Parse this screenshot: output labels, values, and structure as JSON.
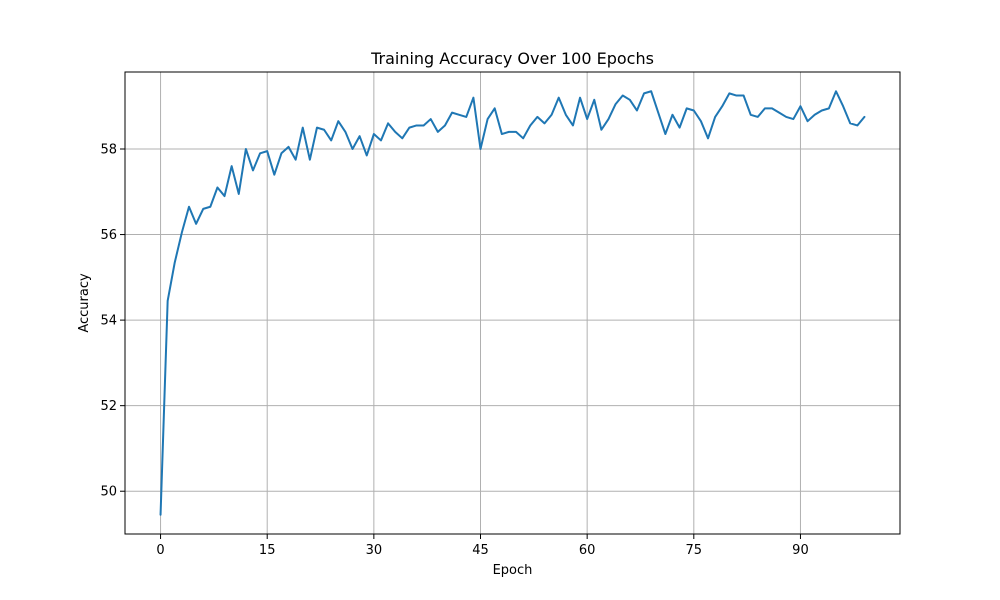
{
  "chart_data": {
    "type": "line",
    "title": "Training Accuracy Over 100 Epochs",
    "xlabel": "Epoch",
    "ylabel": "Accuracy",
    "xlim": [
      -5,
      104
    ],
    "ylim": [
      49.0,
      59.8
    ],
    "xticks": [
      0,
      15,
      30,
      45,
      60,
      75,
      90
    ],
    "yticks": [
      50,
      52,
      54,
      56,
      58
    ],
    "grid": true,
    "line_color": "#1f77b4",
    "series": [
      {
        "x": [
          0,
          1,
          2,
          3,
          4,
          5,
          6,
          7,
          8,
          9,
          10,
          11,
          12,
          13,
          14,
          15,
          16,
          17,
          18,
          19,
          20,
          21,
          22,
          23,
          24,
          25,
          26,
          27,
          28,
          29,
          30,
          31,
          32,
          33,
          34,
          35,
          36,
          37,
          38,
          39,
          40,
          41,
          42,
          43,
          44,
          45,
          46,
          47,
          48,
          49,
          50,
          51,
          52,
          53,
          54,
          55,
          56,
          57,
          58,
          59,
          60,
          61,
          62,
          63,
          64,
          65,
          66,
          67,
          68,
          69,
          70,
          71,
          72,
          73,
          74,
          75,
          76,
          77,
          78,
          79,
          80,
          81,
          82,
          83,
          84,
          85,
          86,
          87,
          88,
          89,
          90,
          91,
          92,
          93,
          94,
          95,
          96,
          97,
          98,
          99
        ],
        "y": [
          49.45,
          54.45,
          55.35,
          56.05,
          56.65,
          56.25,
          56.6,
          56.65,
          57.1,
          56.9,
          57.6,
          56.95,
          58.0,
          57.5,
          57.9,
          57.95,
          57.4,
          57.9,
          58.05,
          57.75,
          58.5,
          57.75,
          58.5,
          58.45,
          58.2,
          58.65,
          58.4,
          58.0,
          58.3,
          57.85,
          58.35,
          58.2,
          58.6,
          58.4,
          58.25,
          58.5,
          58.55,
          58.55,
          58.7,
          58.4,
          58.55,
          58.85,
          58.8,
          58.75,
          59.2,
          58.0,
          58.7,
          58.95,
          58.35,
          58.4,
          58.4,
          58.25,
          58.55,
          58.75,
          58.6,
          58.8,
          59.2,
          58.8,
          58.55,
          59.2,
          58.7,
          59.15,
          58.45,
          58.7,
          59.05,
          59.25,
          59.15,
          58.9,
          59.3,
          59.35,
          58.85,
          58.35,
          58.8,
          58.5,
          58.95,
          58.9,
          58.65,
          58.25,
          58.75,
          59.0,
          59.3,
          59.25,
          59.25,
          58.8,
          58.75,
          58.95,
          58.95,
          58.85,
          58.75,
          58.7,
          59.0,
          58.65,
          58.8,
          58.9,
          58.95,
          59.35,
          59.0,
          58.6,
          58.55,
          58.75
        ]
      }
    ]
  }
}
